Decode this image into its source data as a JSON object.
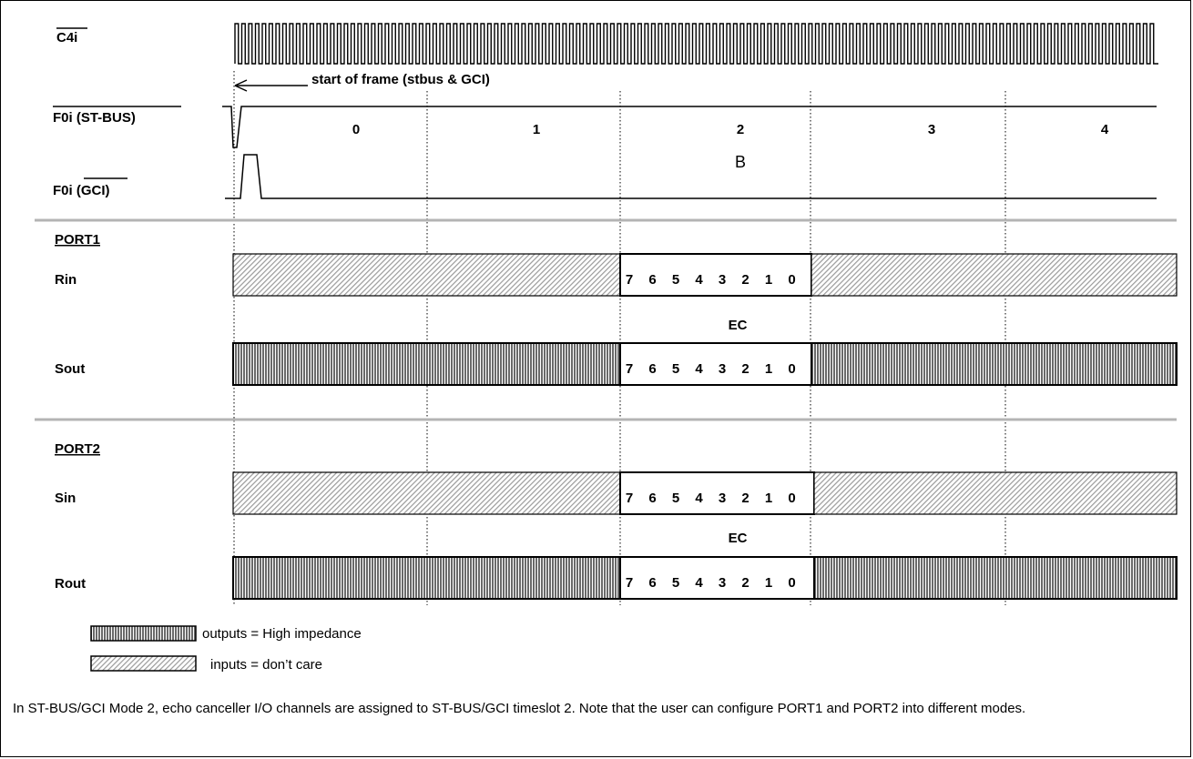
{
  "signals": {
    "c4i": "C4i",
    "f0i_stbus": "F0i (ST-BUS)",
    "f0i_gci_prefix": "F0i ",
    "f0i_gci_suffix": "(GCI)"
  },
  "start_of_frame": "start of frame (stbus & GCI)",
  "timeslots": [
    "0",
    "1",
    "2",
    "3",
    "4"
  ],
  "timeslot_b_label": "B",
  "ports": {
    "port1": {
      "title": "PORT1",
      "in_label": "Rin",
      "out_label": "Sout",
      "ec_label": "EC"
    },
    "port2": {
      "title": "PORT2",
      "in_label": "Sin",
      "out_label": "Rout",
      "ec_label": "EC"
    }
  },
  "bits": [
    "7",
    "6",
    "5",
    "4",
    "3",
    "2",
    "1",
    "0"
  ],
  "legend": {
    "outputs": "outputs = High impedance",
    "inputs": "inputs = don’t care"
  },
  "caption": "In ST-BUS/GCI Mode 2, echo canceller I/O channels are assigned to ST-BUS/GCI timeslot 2. Note that the user can configure PORT1 and PORT2 into different modes.",
  "colors": {
    "hiz_fill": "#8c8c8c",
    "dontcare_fill": "#d7d7d7",
    "separator": "#b4b4b4"
  }
}
